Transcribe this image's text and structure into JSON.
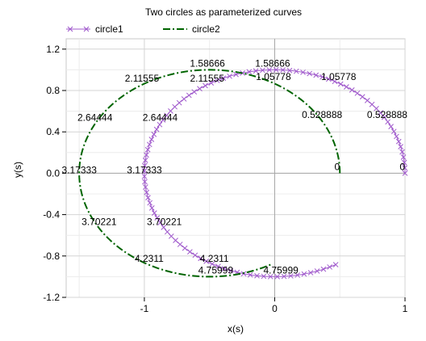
{
  "chart_data": {
    "type": "line",
    "title": "Two circles as parameterized curves",
    "xlabel": "x(s)",
    "ylabel": "y(s)",
    "xlim": [
      -1.6,
      1.0
    ],
    "ylim": [
      -1.2,
      1.3
    ],
    "x_ticks": [
      {
        "v": -1,
        "label": "-1"
      },
      {
        "v": 0,
        "label": "0"
      },
      {
        "v": 1,
        "label": "1"
      }
    ],
    "y_ticks": [
      {
        "v": -1.2,
        "label": "-1.2"
      },
      {
        "v": -0.8,
        "label": "-0.8"
      },
      {
        "v": -0.4,
        "label": "-0.4"
      },
      {
        "v": 0.0,
        "label": "0.0"
      },
      {
        "v": 0.4,
        "label": "0.4"
      },
      {
        "v": 0.8,
        "label": "0.8"
      },
      {
        "v": 1.2,
        "label": "1.2"
      }
    ],
    "grid": true,
    "legend_position": "top-left",
    "series": [
      {
        "name": "circle1",
        "color": "#a05acc",
        "style": "solid-with-x-markers",
        "curve": {
          "cx": 0,
          "cy": 0,
          "r": 1,
          "s_start": 0,
          "s_end": 5.2
        },
        "labels": [
          {
            "s": 0.0,
            "text": "0"
          },
          {
            "s": 0.528888,
            "text": "0.528888"
          },
          {
            "s": 1.05778,
            "text": "1.05778"
          },
          {
            "s": 1.58666,
            "text": "1.58666"
          },
          {
            "s": 2.11555,
            "text": "2.11555"
          },
          {
            "s": 2.64444,
            "text": "2.64444"
          },
          {
            "s": 3.17333,
            "text": "3.17333"
          },
          {
            "s": 3.70221,
            "text": "3.70221"
          },
          {
            "s": 4.2311,
            "text": "4.2311"
          },
          {
            "s": 4.75999,
            "text": "4.75999"
          }
        ]
      },
      {
        "name": "circle2",
        "color": "#006400",
        "style": "dash-dot",
        "curve": {
          "cx": -0.5,
          "cy": 0,
          "r": 1,
          "s_start": 0,
          "s_end": 5.2
        },
        "labels": [
          {
            "s": 0.0,
            "text": "0"
          },
          {
            "s": 0.528888,
            "text": "0.528888"
          },
          {
            "s": 1.05778,
            "text": "1.05778"
          },
          {
            "s": 1.58666,
            "text": "1.58666"
          },
          {
            "s": 2.11555,
            "text": "2.11555"
          },
          {
            "s": 2.64444,
            "text": "2.64444"
          },
          {
            "s": 3.17333,
            "text": "3.17333"
          },
          {
            "s": 3.70221,
            "text": "3.70221"
          },
          {
            "s": 4.2311,
            "text": "4.2311"
          },
          {
            "s": 4.75999,
            "text": "4.75999"
          }
        ]
      }
    ]
  }
}
